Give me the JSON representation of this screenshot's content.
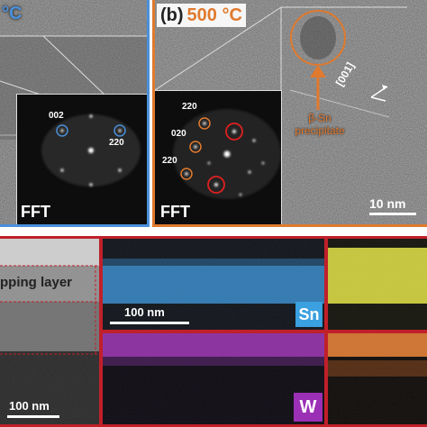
{
  "panel_a": {
    "temp_fragment": "°C",
    "fft_label": "FFT",
    "spot_labels": [
      "002",
      "220"
    ],
    "border_color": "#4a90d9",
    "circle_color": "#4a90d9"
  },
  "panel_b": {
    "letter": "(b)",
    "temperature": "500 °C",
    "direction": "[001]",
    "precipitate_line1": "β-Sn",
    "precipitate_line2": "precipitate",
    "fft_label": "FFT",
    "spot_labels": [
      "220",
      "020",
      "220"
    ],
    "scale_bar": "10 nm",
    "border_color": "#e07a2e",
    "accent_color": "#e07a2e",
    "red_circle_color": "#e02020"
  },
  "bottom": {
    "layer_label": "pping layer",
    "scale_bar_left": "100 nm",
    "scale_bar_sn": "100 nm",
    "element_sn": "Sn",
    "element_w": "W",
    "border_color": "#c0202a",
    "sn_color": "#3aa0e0",
    "w_color": "#9b2fb5",
    "yellow_color": "#d6d63a",
    "orange_color": "#e07a2e"
  }
}
